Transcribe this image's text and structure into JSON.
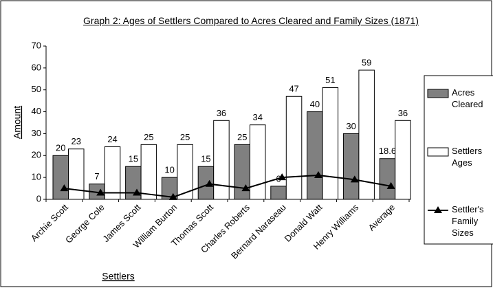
{
  "chart_data": {
    "type": "bar",
    "title": "Graph 2: Ages of Settlers Compared to Acres Cleared and Family Sizes (1871)",
    "x_label": "Settlers",
    "y_label": "Amount",
    "categories": [
      "Archie Scott",
      "George Cole",
      "James Scott",
      "William Burton",
      "Thomas Scott",
      "Charles Roberts",
      "Bernard Naraseau",
      "Donald Watt",
      "Henry Williams",
      "Average"
    ],
    "series": [
      {
        "name": "Acres Cleared",
        "color": "#808080",
        "values": [
          20,
          7,
          15,
          10,
          15,
          25,
          6,
          40,
          30,
          18.6
        ]
      },
      {
        "name": "Settlers Ages",
        "color": "#ffffff",
        "values": [
          23,
          24,
          25,
          25,
          36,
          34,
          47,
          51,
          59,
          36
        ]
      },
      {
        "name": "Settler's Family Sizes",
        "color": "#000000",
        "type": "line",
        "values": [
          5,
          3,
          3,
          1,
          7,
          5,
          10,
          11,
          9,
          6
        ]
      }
    ],
    "ylim": [
      0,
      70
    ],
    "yticks": [
      0,
      10,
      20,
      30,
      40,
      50,
      60,
      70
    ],
    "legend": "right"
  }
}
